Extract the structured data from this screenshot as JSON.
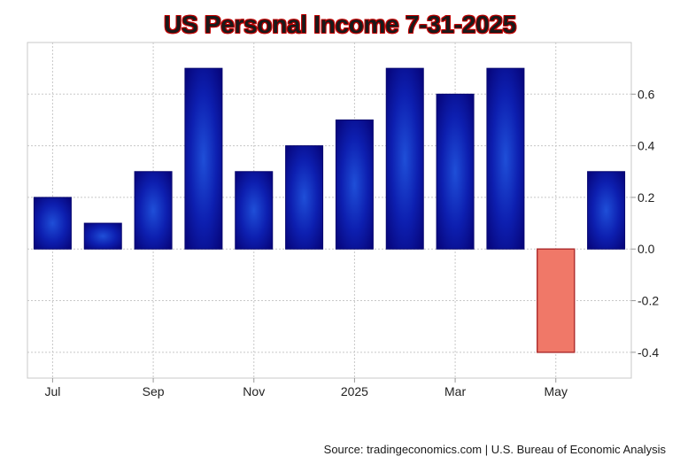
{
  "chart_data": {
    "type": "bar",
    "title": "US Personal Income 7-31-2025",
    "categories": [
      "2024-07",
      "2024-08",
      "2024-09",
      "2024-10",
      "2024-11",
      "2024-12",
      "2025-01",
      "2025-02",
      "2025-03",
      "2025-04",
      "2025-05",
      "2025-06"
    ],
    "values": [
      0.2,
      0.1,
      0.3,
      0.7,
      0.3,
      0.4,
      0.5,
      0.7,
      0.6,
      0.7,
      -0.4,
      0.3
    ],
    "x_tick_labels": [
      "Jul",
      "Sep",
      "Nov",
      "2025",
      "Mar",
      "May"
    ],
    "y_tick_labels": [
      "0.6",
      "0.4",
      "0.2",
      "0.0",
      "-0.2",
      "-0.4"
    ],
    "y_ticks": [
      0.6,
      0.4,
      0.2,
      0.0,
      -0.2,
      -0.4
    ],
    "ylim": [
      -0.5,
      0.8
    ],
    "y_axis_position": "right",
    "grid": true,
    "colors": {
      "positive": "#0a0a9a",
      "positive_center": "#1f4fd8",
      "negative": "#f07868",
      "negative_stroke": "#b03030",
      "grid": "#c8c8c8",
      "title_outline": "#c00000"
    },
    "xlabel": "",
    "ylabel": ""
  },
  "source_text": "Source: tradingeconomics.com | U.S. Bureau of Economic Analysis"
}
